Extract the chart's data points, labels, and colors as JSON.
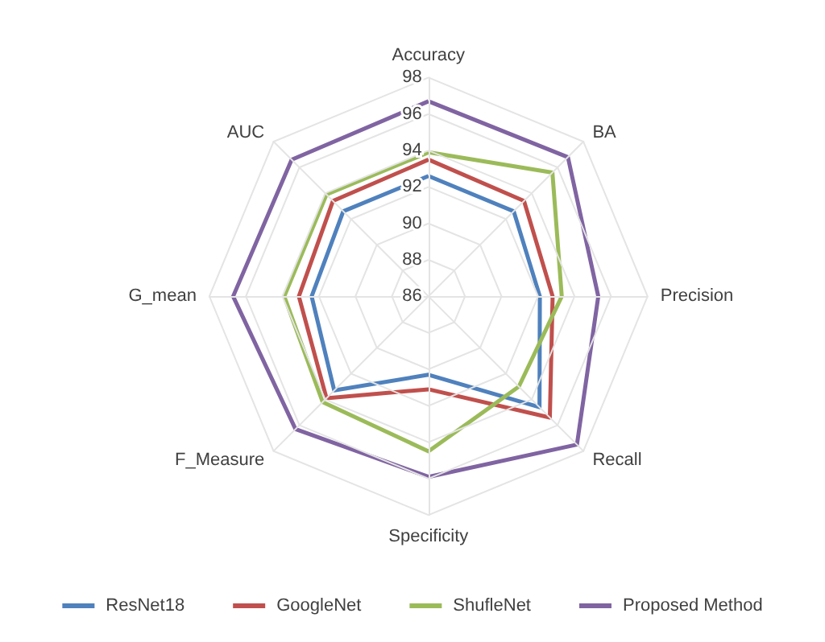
{
  "chart_data": {
    "type": "radar",
    "categories": [
      "Accuracy",
      "BA",
      "Precision",
      "Recall",
      "Specificity",
      "F_Measure",
      "G_mean",
      "AUC"
    ],
    "ylim": [
      86,
      98
    ],
    "yticks": [
      86,
      88,
      90,
      92,
      94,
      96,
      98
    ],
    "grid": true,
    "legend": "bottom",
    "marker": "none",
    "series": [
      {
        "name": "ResNet18",
        "color": "#4f81bd",
        "values": [
          92.6,
          92.6,
          92.1,
          94.6,
          90.3,
          93.3,
          92.4,
          92.6
        ]
      },
      {
        "name": "GoogleNet",
        "color": "#c0504d",
        "values": [
          93.5,
          93.4,
          92.8,
          95.4,
          91.1,
          93.9,
          93.1,
          93.4
        ]
      },
      {
        "name": "ShufleNet",
        "color": "#9bbb59",
        "values": [
          93.9,
          95.6,
          93.3,
          93.0,
          94.5,
          94.2,
          93.9,
          93.9
        ]
      },
      {
        "name": "Proposed Method",
        "color": "#8064a2",
        "values": [
          96.7,
          96.8,
          95.3,
          97.5,
          95.9,
          96.3,
          96.7,
          96.6
        ]
      }
    ]
  }
}
